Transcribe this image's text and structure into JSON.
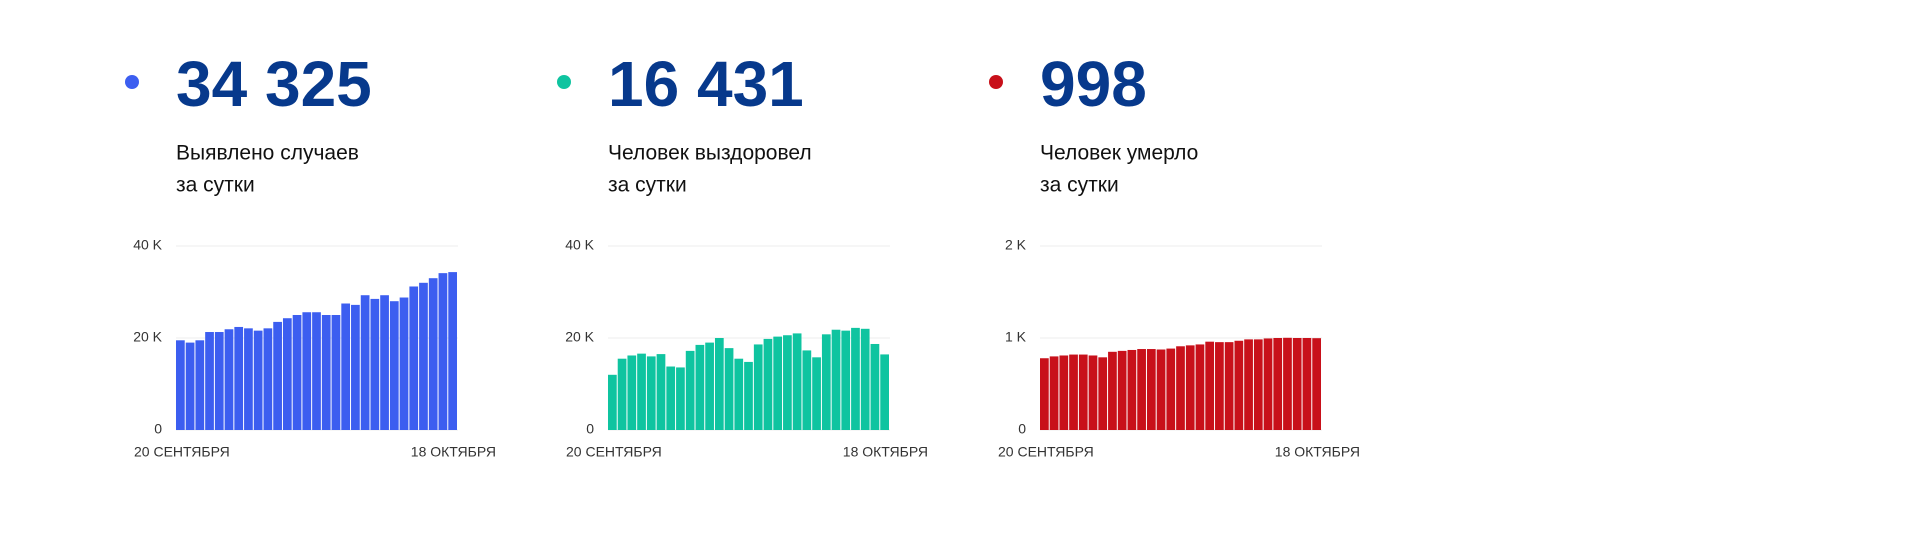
{
  "chart_data": [
    {
      "type": "bar",
      "title": "34 325",
      "subtitle": [
        "Выявлено случаев",
        "за сутки"
      ],
      "color": "#3c5ef0",
      "categories": [
        "20 СЕНТЯБРЯ",
        null,
        null,
        null,
        null,
        null,
        null,
        null,
        null,
        null,
        null,
        null,
        null,
        null,
        null,
        null,
        null,
        null,
        null,
        null,
        null,
        null,
        null,
        null,
        null,
        null,
        null,
        null,
        "18 ОКТЯБРЯ"
      ],
      "values": [
        19500,
        19000,
        19500,
        21300,
        21300,
        21900,
        22400,
        22100,
        21600,
        22100,
        23500,
        24300,
        25000,
        25600,
        25600,
        25000,
        25000,
        27500,
        27200,
        29300,
        28500,
        29300,
        28000,
        28800,
        31200,
        32000,
        33000,
        34100,
        34325
      ],
      "ylim": [
        0,
        40000
      ],
      "yticks": [
        0,
        {
          "value": 20000,
          "label": "20 K"
        },
        {
          "value": 40000,
          "label": "40 K"
        }
      ],
      "grid": true
    },
    {
      "type": "bar",
      "title": "16 431",
      "subtitle": [
        "Человек выздоровел",
        "за сутки"
      ],
      "color": "#0fc4a0",
      "categories": [
        "20 СЕНТЯБРЯ",
        null,
        null,
        null,
        null,
        null,
        null,
        null,
        null,
        null,
        null,
        null,
        null,
        null,
        null,
        null,
        null,
        null,
        null,
        null,
        null,
        null,
        null,
        null,
        null,
        null,
        null,
        null,
        "18 ОКТЯБРЯ"
      ],
      "values": [
        12000,
        15500,
        16200,
        16600,
        16000,
        16500,
        13800,
        13600,
        17200,
        18500,
        19000,
        20000,
        17800,
        15500,
        14800,
        18600,
        19800,
        20300,
        20600,
        21000,
        17300,
        15800,
        20800,
        21800,
        21600,
        22200,
        22000,
        18700,
        16431
      ],
      "ylim": [
        0,
        40000
      ],
      "yticks": [
        0,
        {
          "value": 20000,
          "label": "20 K"
        },
        {
          "value": 40000,
          "label": "40 K"
        }
      ],
      "grid": true
    },
    {
      "type": "bar",
      "title": "998",
      "subtitle": [
        "Человек умерло",
        "за сутки"
      ],
      "color": "#c8101a",
      "categories": [
        "20 СЕНТЯБРЯ",
        null,
        null,
        null,
        null,
        null,
        null,
        null,
        null,
        null,
        null,
        null,
        null,
        null,
        null,
        null,
        null,
        null,
        null,
        null,
        null,
        null,
        null,
        null,
        null,
        null,
        null,
        null,
        "18 ОКТЯБРЯ"
      ],
      "values": [
        780,
        800,
        810,
        820,
        820,
        810,
        790,
        850,
        860,
        870,
        880,
        880,
        875,
        885,
        910,
        920,
        930,
        960,
        955,
        955,
        970,
        985,
        985,
        995,
        1000,
        1002,
        1000,
        1000,
        998
      ],
      "ylim": [
        0,
        2000
      ],
      "yticks": [
        0,
        {
          "value": 1000,
          "label": "1 K"
        },
        {
          "value": 2000,
          "label": "2 K"
        }
      ],
      "grid": true
    }
  ]
}
